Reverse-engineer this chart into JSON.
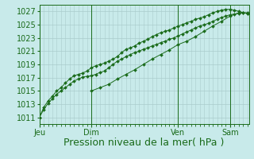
{
  "background_color": "#c8eaea",
  "grid_color": "#aacccc",
  "line_color": "#1a6b1a",
  "marker_color": "#1a6b1a",
  "xlabel": "Pression niveau de la mer( hPa )",
  "xlabel_fontsize": 9,
  "tick_label_fontsize": 7,
  "day_labels": [
    "Jeu",
    "Dim",
    "Ven",
    "Sam"
  ],
  "day_positions": [
    0,
    72,
    192,
    264
  ],
  "ylim": [
    1010.0,
    1028.0
  ],
  "yticks": [
    1011,
    1013,
    1015,
    1017,
    1019,
    1021,
    1023,
    1025,
    1027
  ],
  "line1_x": [
    0,
    6,
    12,
    18,
    24,
    30,
    36,
    42,
    48,
    54,
    60,
    66,
    72,
    78,
    84,
    90,
    96,
    102,
    108,
    114,
    120,
    126,
    132,
    138,
    144,
    150,
    156,
    162,
    168,
    174,
    180,
    186,
    192,
    198,
    204,
    210,
    216,
    222,
    228,
    234,
    240,
    246,
    252,
    258,
    264,
    270,
    276,
    282,
    288
  ],
  "line1_y": [
    1011.0,
    1012.2,
    1013.1,
    1013.8,
    1014.5,
    1015.0,
    1015.5,
    1016.0,
    1016.5,
    1016.8,
    1017.1,
    1017.2,
    1017.3,
    1017.5,
    1017.8,
    1018.0,
    1018.5,
    1019.0,
    1019.5,
    1019.8,
    1020.2,
    1020.5,
    1020.8,
    1021.0,
    1021.3,
    1021.5,
    1021.8,
    1022.0,
    1022.3,
    1022.5,
    1022.8,
    1023.0,
    1023.3,
    1023.6,
    1023.9,
    1024.2,
    1024.5,
    1024.8,
    1025.0,
    1025.2,
    1025.5,
    1025.8,
    1026.1,
    1026.3,
    1026.5,
    1026.6,
    1026.7,
    1026.8,
    1026.8
  ],
  "line2_x": [
    0,
    6,
    12,
    18,
    24,
    30,
    36,
    42,
    48,
    54,
    60,
    66,
    72,
    78,
    84,
    90,
    96,
    102,
    108,
    114,
    120,
    126,
    132,
    138,
    144,
    150,
    156,
    162,
    168,
    174,
    180,
    186,
    192,
    198,
    204,
    210,
    216,
    222,
    228,
    234,
    240,
    246,
    252,
    258,
    264,
    270,
    276,
    282,
    288
  ],
  "line2_y": [
    1011.0,
    1012.5,
    1013.5,
    1014.2,
    1015.0,
    1015.5,
    1016.2,
    1016.8,
    1017.3,
    1017.5,
    1017.7,
    1018.0,
    1018.5,
    1018.8,
    1019.0,
    1019.2,
    1019.5,
    1019.8,
    1020.2,
    1020.8,
    1021.3,
    1021.5,
    1021.8,
    1022.2,
    1022.5,
    1022.8,
    1023.2,
    1023.5,
    1023.8,
    1024.0,
    1024.2,
    1024.5,
    1024.8,
    1025.0,
    1025.3,
    1025.5,
    1025.8,
    1026.0,
    1026.2,
    1026.5,
    1026.8,
    1027.0,
    1027.2,
    1027.3,
    1027.3,
    1027.2,
    1027.0,
    1026.8,
    1026.7
  ],
  "line3_x": [
    72,
    84,
    96,
    108,
    120,
    132,
    144,
    156,
    168,
    180,
    192,
    204,
    216,
    228,
    240,
    252,
    264,
    276,
    288
  ],
  "line3_y": [
    1015.0,
    1015.5,
    1016.0,
    1016.8,
    1017.5,
    1018.2,
    1019.0,
    1019.8,
    1020.5,
    1021.2,
    1022.0,
    1022.5,
    1023.2,
    1024.0,
    1024.8,
    1025.5,
    1026.3,
    1026.8,
    1026.7
  ],
  "xlim": [
    0,
    290
  ],
  "marker_size": 2.0,
  "marker_style": "D",
  "line_width": 0.7
}
